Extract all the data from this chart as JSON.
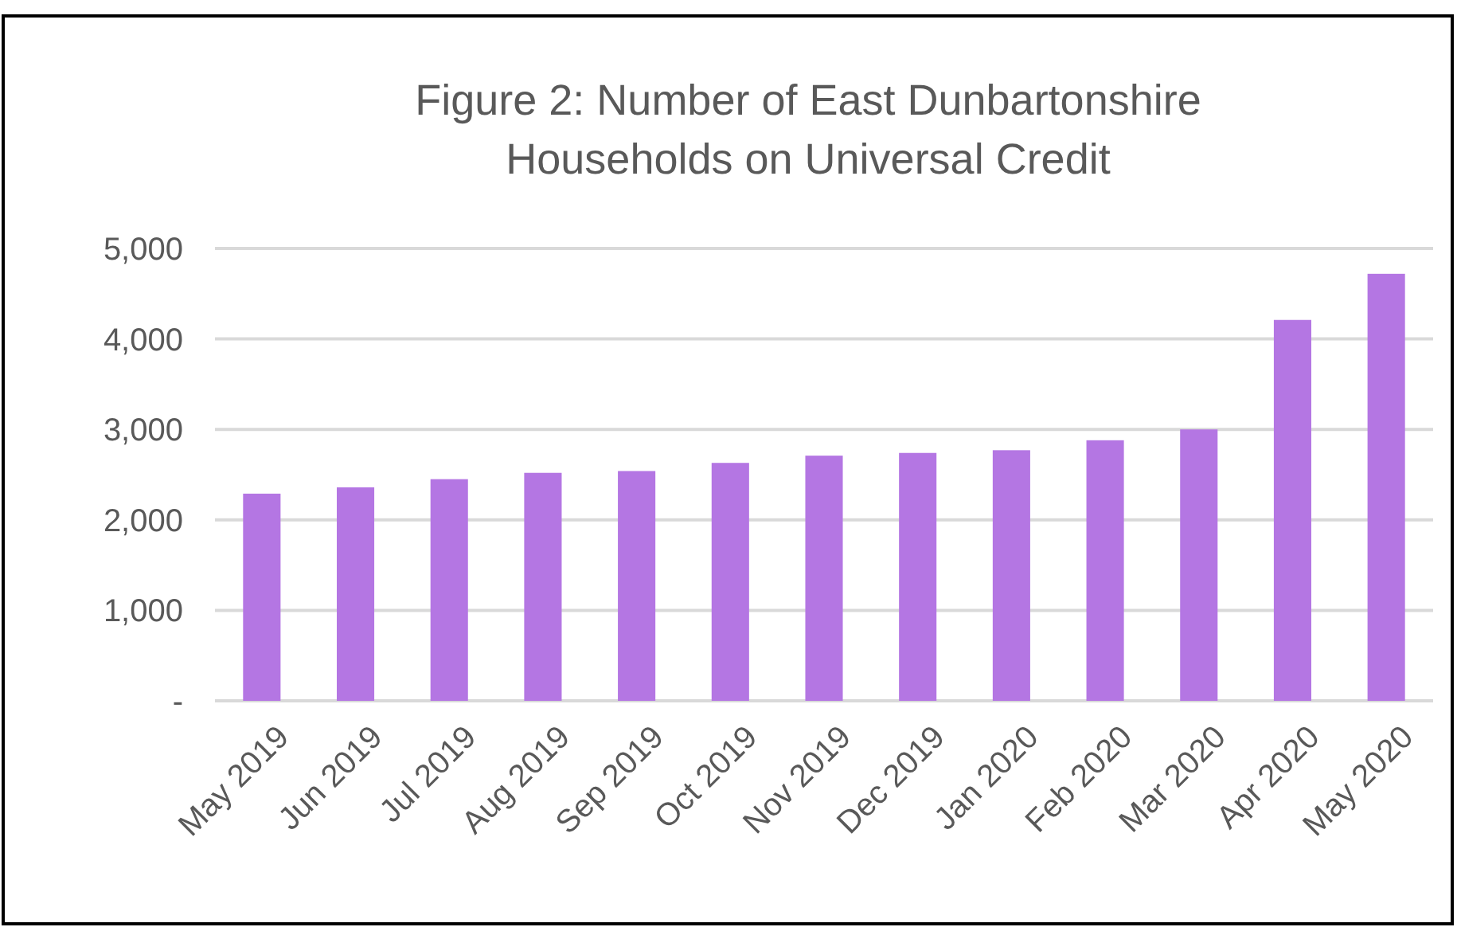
{
  "chart_data": {
    "type": "bar",
    "title": "Figure 2: Number of East Dunbartonshire Households on Universal Credit",
    "categories": [
      "May 2019",
      "Jun 2019",
      "Jul 2019",
      "Aug 2019",
      "Sep 2019",
      "Oct 2019",
      "Nov 2019",
      "Dec 2019",
      "Jan 2020",
      "Feb 2020",
      "Mar 2020",
      "Apr 2020",
      "May 2020"
    ],
    "values": [
      2290,
      2360,
      2450,
      2520,
      2540,
      2630,
      2710,
      2740,
      2770,
      2880,
      3000,
      4210,
      4720
    ],
    "color": "#b476e3",
    "ylim": [
      0,
      5000
    ],
    "yticks": [
      {
        "value": 0,
        "label": "-"
      },
      {
        "value": 1000,
        "label": "1,000"
      },
      {
        "value": 2000,
        "label": "2,000"
      },
      {
        "value": 3000,
        "label": "3,000"
      },
      {
        "value": 4000,
        "label": "4,000"
      },
      {
        "value": 5000,
        "label": "5,000"
      }
    ],
    "grid": true
  }
}
